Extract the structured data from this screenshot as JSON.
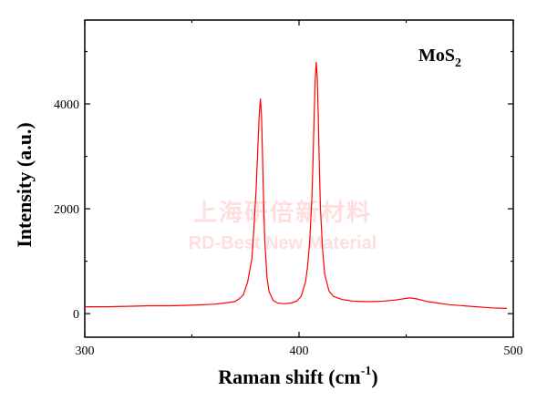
{
  "chart_data": {
    "type": "line",
    "annotation": "MoS",
    "annotation_sub": "2",
    "xlabel": "Raman shift (cm",
    "xlabel_sup": "-1",
    "xlabel_tail": ")",
    "ylabel": "Intensity (a.u.)",
    "xlim": [
      300,
      500
    ],
    "ylim": [
      -450,
      5600
    ],
    "x_ticks": [
      300,
      400,
      500
    ],
    "x_tick_labels": [
      "300",
      "400",
      "500"
    ],
    "y_ticks": [
      0,
      2000,
      4000
    ],
    "y_tick_labels": [
      "0",
      "2000",
      "4000"
    ],
    "grid": false,
    "legend": "none",
    "line_color": "#ff0000",
    "series": [
      {
        "x": [
          300,
          310,
          320,
          330,
          340,
          350,
          360,
          365,
          370,
          372,
          374,
          376,
          378,
          379,
          380,
          381,
          381.5,
          382,
          382.5,
          383,
          383.5,
          384,
          385,
          386,
          388,
          390,
          393,
          396,
          399,
          401,
          403,
          404,
          405,
          406,
          406.5,
          407,
          407.5,
          408,
          408.5,
          409,
          409.5,
          410,
          411,
          412,
          414,
          416,
          420,
          425,
          430,
          435,
          440,
          445,
          450,
          452,
          455,
          460,
          465,
          470,
          480,
          490,
          497
        ],
        "y": [
          130,
          130,
          140,
          150,
          150,
          160,
          180,
          200,
          230,
          280,
          360,
          600,
          1050,
          1650,
          2400,
          3400,
          3850,
          4100,
          3750,
          3000,
          2100,
          1400,
          700,
          420,
          250,
          200,
          190,
          200,
          240,
          330,
          600,
          900,
          1400,
          2200,
          2900,
          3700,
          4400,
          4800,
          4500,
          3700,
          2800,
          2000,
          1200,
          750,
          430,
          330,
          270,
          240,
          230,
          230,
          240,
          260,
          290,
          300,
          280,
          230,
          200,
          170,
          140,
          110,
          100
        ]
      }
    ]
  },
  "watermark": {
    "line1": "上海研倍新材料",
    "line2": "RD-Best New Material"
  }
}
